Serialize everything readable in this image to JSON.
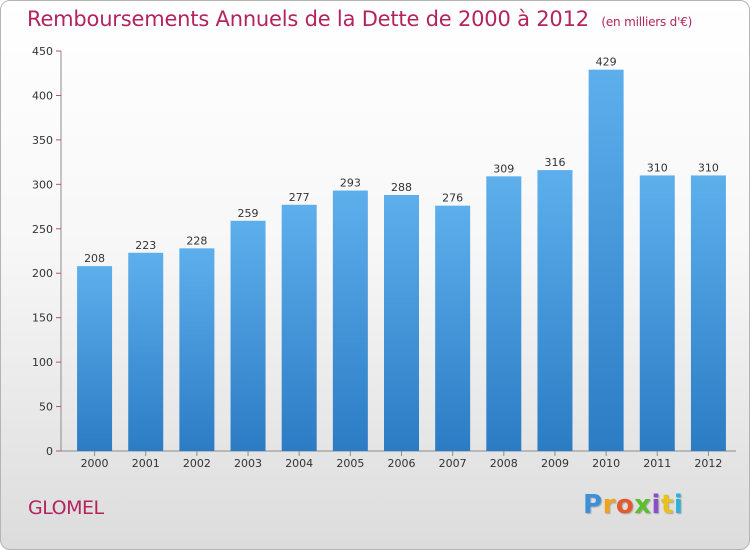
{
  "header": {
    "title": "Remboursements Annuels de la Dette de 2000 à 2012",
    "unit": "(en milliers d'€)"
  },
  "footer": {
    "commune": "GLOMEL",
    "logo": {
      "text": "Proxiti",
      "letters": [
        {
          "ch": "P",
          "color": "#3d8fd8"
        },
        {
          "ch": "r",
          "color": "#f0a21b"
        },
        {
          "ch": "o",
          "color": "#e05a2a"
        },
        {
          "ch": "x",
          "color": "#5bbf2e"
        },
        {
          "ch": "i",
          "color": "#8a4fc7"
        },
        {
          "ch": "t",
          "color": "#e8c21a"
        },
        {
          "ch": "i",
          "color": "#2fb0d8"
        }
      ]
    }
  },
  "colors": {
    "title": "#b3245f",
    "bar_top": "#5dafec",
    "bar_bottom": "#2b7cc4",
    "axis": "#8c8c8c",
    "grid_tick": "#c24a7a"
  },
  "chart_data": {
    "type": "bar",
    "title": "Remboursements Annuels de la Dette de 2000 à 2012",
    "xlabel": "",
    "ylabel": "",
    "categories": [
      "2000",
      "2001",
      "2002",
      "2003",
      "2004",
      "2005",
      "2006",
      "2007",
      "2008",
      "2009",
      "2010",
      "2011",
      "2012"
    ],
    "values": [
      208,
      223,
      228,
      259,
      277,
      293,
      288,
      276,
      309,
      316,
      429,
      310,
      310
    ],
    "ylim": [
      0,
      450
    ],
    "yticks": [
      0,
      50,
      100,
      150,
      200,
      250,
      300,
      350,
      400,
      450
    ],
    "grid": false,
    "data_labels": true
  }
}
